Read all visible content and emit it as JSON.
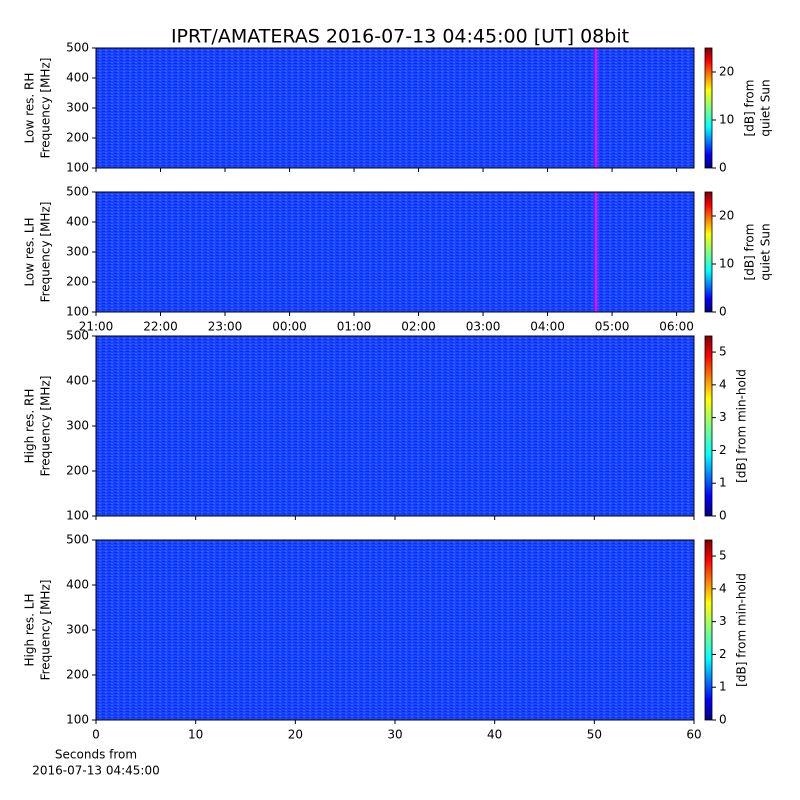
{
  "chart_data": [
    {
      "type": "heatmap",
      "title": "IPRT/AMATERAS 2016-07-13 04:45:00 [UT]   08bit",
      "ylabel": [
        "Low res. RH",
        "Frequency [MHz]"
      ],
      "colormap": "jet",
      "xlim": [
        21,
        30.27
      ],
      "xticks": [
        21,
        22,
        23,
        24,
        25,
        26,
        27,
        28,
        29,
        30
      ],
      "ylim": [
        100,
        500
      ],
      "yticks": [
        100,
        200,
        300,
        400,
        500
      ],
      "vline": 28.75,
      "vline_color": "#ff00ff",
      "colorbar": {
        "label": [
          "[dB] from",
          "quiet Sun"
        ],
        "lim": [
          0,
          25
        ],
        "ticks": [
          0,
          10,
          20
        ]
      }
    },
    {
      "type": "heatmap",
      "ylabel": [
        "Low res. LH",
        "Frequency [MHz]"
      ],
      "colormap": "jet",
      "xlim": [
        21,
        30.27
      ],
      "xticks": [
        {
          "value": 21,
          "label": "21:00"
        },
        {
          "value": 22,
          "label": "22:00"
        },
        {
          "value": 23,
          "label": "23:00"
        },
        {
          "value": 24,
          "label": "00:00"
        },
        {
          "value": 25,
          "label": "01:00"
        },
        {
          "value": 26,
          "label": "02:00"
        },
        {
          "value": 27,
          "label": "03:00"
        },
        {
          "value": 28,
          "label": "04:00"
        },
        {
          "value": 29,
          "label": "05:00"
        },
        {
          "value": 30,
          "label": "06:00"
        }
      ],
      "ylim": [
        100,
        500
      ],
      "yticks": [
        100,
        200,
        300,
        400,
        500
      ],
      "vline": 28.75,
      "vline_color": "#ff00ff",
      "colorbar": {
        "label": [
          "[dB] from",
          "quiet Sun"
        ],
        "lim": [
          0,
          25
        ],
        "ticks": [
          0,
          10,
          20
        ]
      }
    },
    {
      "type": "heatmap",
      "ylabel": [
        "High res. RH",
        "Frequency [MHz]"
      ],
      "colormap": "jet",
      "xlim": [
        0,
        60
      ],
      "xticks": [
        0,
        10,
        20,
        30,
        40,
        50,
        60
      ],
      "ylim": [
        100,
        500
      ],
      "yticks": [
        100,
        200,
        300,
        400,
        500
      ],
      "colorbar": {
        "label": [
          "[dB] from min-hold"
        ],
        "lim": [
          0,
          5.49
        ],
        "ticks": [
          0,
          1,
          2,
          3,
          4,
          5
        ]
      }
    },
    {
      "type": "heatmap",
      "ylabel": [
        "High res. LH",
        "Frequency [MHz]"
      ],
      "colormap": "jet",
      "xlabel": [
        "Seconds from",
        "2016-07-13 04:45:00"
      ],
      "xlim": [
        0,
        60
      ],
      "xticks": [
        0,
        10,
        20,
        30,
        40,
        50,
        60
      ],
      "xticks_labeled": true,
      "ylim": [
        100,
        500
      ],
      "yticks": [
        100,
        200,
        300,
        400,
        500
      ],
      "colorbar": {
        "label": [
          "[dB] from min-hold"
        ],
        "lim": [
          0,
          5.49
        ],
        "ticks": [
          0,
          1,
          2,
          3,
          4,
          5
        ]
      }
    }
  ]
}
